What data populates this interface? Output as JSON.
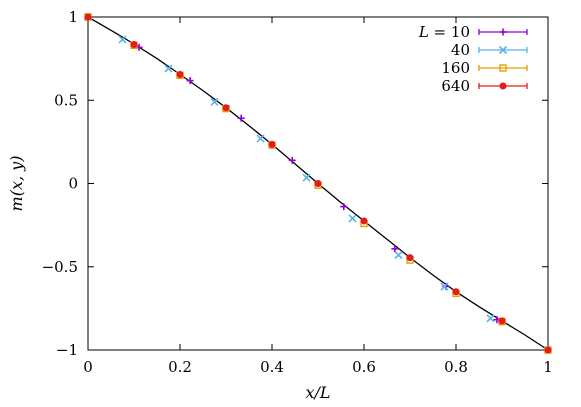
{
  "chart_data": {
    "type": "scatter",
    "title": "",
    "xlabel": "x/L",
    "ylabel": "m(x, y)",
    "xlim": [
      0,
      1
    ],
    "ylim": [
      -1,
      1
    ],
    "x_ticks": [
      0,
      0.2,
      0.4,
      0.6,
      0.8,
      1
    ],
    "x_tick_labels": [
      "0",
      "0.2",
      "0.4",
      "0.6",
      "0.8",
      "1"
    ],
    "y_ticks": [
      -1,
      -0.5,
      0,
      0.5,
      1
    ],
    "y_tick_labels": [
      "−1",
      "−0.5",
      "0",
      "0.5",
      "1"
    ],
    "grid": false,
    "legend_position": "top-right",
    "legend_title": "L =",
    "series": [
      {
        "name": "10",
        "color": "#9400d3",
        "marker": "plus",
        "points": [
          [
            0.0,
            1.0
          ],
          [
            0.111,
            0.818
          ],
          [
            0.222,
            0.618
          ],
          [
            0.333,
            0.392
          ],
          [
            0.444,
            0.139
          ],
          [
            0.556,
            -0.139
          ],
          [
            0.667,
            -0.392
          ],
          [
            0.778,
            -0.618
          ],
          [
            0.889,
            -0.818
          ]
        ]
      },
      {
        "name": "40",
        "color": "#56b4e9",
        "marker": "cross",
        "points": [
          [
            0.0,
            1.0
          ],
          [
            0.075,
            0.865
          ],
          [
            0.175,
            0.69
          ],
          [
            0.275,
            0.49
          ],
          [
            0.375,
            0.27
          ],
          [
            0.475,
            0.035
          ],
          [
            0.575,
            -0.21
          ],
          [
            0.675,
            -0.43
          ],
          [
            0.775,
            -0.62
          ],
          [
            0.875,
            -0.81
          ]
        ]
      },
      {
        "name": "160",
        "color": "#e69f00",
        "marker": "square",
        "points": [
          [
            0.0,
            1.0
          ],
          [
            0.1,
            0.83
          ],
          [
            0.2,
            0.65
          ],
          [
            0.3,
            0.45
          ],
          [
            0.4,
            0.23
          ],
          [
            0.5,
            -0.01
          ],
          [
            0.6,
            -0.24
          ],
          [
            0.7,
            -0.46
          ],
          [
            0.8,
            -0.66
          ],
          [
            0.9,
            -0.83
          ],
          [
            1.0,
            -1.0
          ]
        ]
      },
      {
        "name": "640",
        "color": "#e41a1c",
        "marker": "dot",
        "points": [
          [
            0.0,
            1.0
          ],
          [
            0.1,
            0.835
          ],
          [
            0.2,
            0.655
          ],
          [
            0.3,
            0.455
          ],
          [
            0.4,
            0.235
          ],
          [
            0.5,
            0.0
          ],
          [
            0.6,
            -0.225
          ],
          [
            0.7,
            -0.445
          ],
          [
            0.8,
            -0.65
          ],
          [
            0.9,
            -0.825
          ],
          [
            1.0,
            -1.0
          ]
        ]
      }
    ],
    "curve": {
      "color": "#000000",
      "points": [
        [
          0.0,
          1.0
        ],
        [
          0.05,
          0.92
        ],
        [
          0.1,
          0.838
        ],
        [
          0.15,
          0.75
        ],
        [
          0.2,
          0.655
        ],
        [
          0.25,
          0.558
        ],
        [
          0.3,
          0.455
        ],
        [
          0.35,
          0.347
        ],
        [
          0.4,
          0.235
        ],
        [
          0.45,
          0.118
        ],
        [
          0.5,
          0.0
        ],
        [
          0.55,
          -0.115
        ],
        [
          0.6,
          -0.225
        ],
        [
          0.65,
          -0.335
        ],
        [
          0.7,
          -0.445
        ],
        [
          0.75,
          -0.55
        ],
        [
          0.8,
          -0.65
        ],
        [
          0.85,
          -0.74
        ],
        [
          0.9,
          -0.825
        ],
        [
          0.95,
          -0.91
        ],
        [
          1.0,
          -1.0
        ]
      ]
    }
  }
}
